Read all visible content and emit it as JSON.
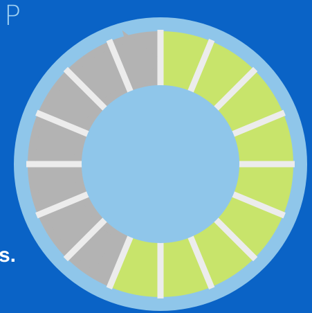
{
  "background_color": "#0a63c6",
  "corner_text": "P",
  "edge_text": "s.",
  "wheel": {
    "segment_count": 16,
    "completed_segments": 9,
    "remaining_segments": 7,
    "colors": {
      "outer_ring": "#8fc6ea",
      "inner_circle": "#8fc6ea",
      "completed": "#c8e46b",
      "remaining": "#b3b3b3",
      "divider": "#ececec",
      "arrow": "#b3b3b3"
    },
    "arrow_icon": "curved-arrow-icon"
  }
}
